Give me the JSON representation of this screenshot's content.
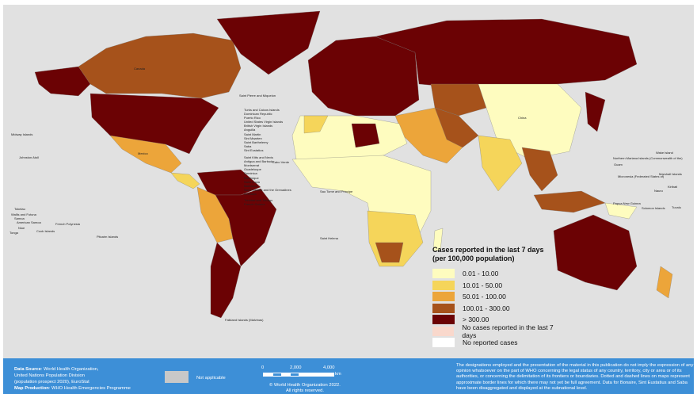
{
  "legend": {
    "title_line1": "Cases reported in the last 7 days",
    "title_line2": "(per 100,000 population)",
    "items": [
      {
        "label": "0.01 - 10.00",
        "color": "#fefcbf"
      },
      {
        "label": "10.01 - 50.00",
        "color": "#f5d55a"
      },
      {
        "label": "50.01 - 100.00",
        "color": "#eca53a"
      },
      {
        "label": "100.01 - 300.00",
        "color": "#a6521b"
      },
      {
        "label": "> 300.00",
        "color": "#6b0204"
      },
      {
        "label": "No cases reported in the last 7 days",
        "color": "#f9d8cc"
      },
      {
        "label": "No reported cases",
        "color": "#ffffff"
      }
    ]
  },
  "map_labels": {
    "canada": "Canada",
    "china": "China",
    "mexico": "Mexico",
    "greenland_spm": "Saint Pierre and Miquelon",
    "caribbean": [
      "Turks and Caicos Islands",
      "Dominican Republic",
      "Puerto Rico",
      "United States Virgin Islands",
      "British Virgin Islands",
      "Anguilla",
      "Saint Martin",
      "Sint Maarten",
      "Saint Barthelemy",
      "Saba",
      "Sint Eustatius",
      "Saint Kitts and Nevis",
      "Antigua and Barbuda",
      "Montserrat",
      "Guadeloupe",
      "Dominica",
      "Martinique",
      "Saint Lucia",
      "Barbados",
      "Saint Vincent and the Grenadines",
      "Grenada",
      "Trinidad and Tobago",
      "French Guiana"
    ],
    "cabo_verde": "Cabo Verde",
    "sao_tome": "Sao Tome and Principe",
    "pacific_west": [
      "Midway Islands",
      "Johnston Atoll",
      "Tokelau",
      "Wallis and Futuna",
      "Samoa",
      "American Samoa",
      "Niue",
      "Tonga",
      "Cook Islands",
      "French Polynesia",
      "Pitcairn Islands"
    ],
    "pacific_east": [
      "Wake Island",
      "Northern Mariana Islands (Commonwealth of the)",
      "Guam",
      "Micronesia (Federated States of)",
      "Marshall Islands",
      "Kiribati",
      "Nauru",
      "Papua New Guinea",
      "Solomon Islands",
      "Tuvalu"
    ],
    "falkland": "Falkland Islands (Malvinas)",
    "saint_helena": "Saint Helena"
  },
  "footer": {
    "data_source_label": "Data Source",
    "data_source_lines": [
      ": World Health Organization,",
      "United Nations Population Division",
      "(population prospect 2020), EuroStat"
    ],
    "map_production_label": "Map Production",
    "map_production": ": WHO Health Emergencies Programme",
    "not_applicable": "Not applicable",
    "not_applicable_color": "#c8c8c8",
    "scale_ticks": [
      "0",
      "2,000",
      "4,000"
    ],
    "scale_unit": "km",
    "copyright_line1": "© World Health Organization  2022.",
    "copyright_line2": "All rights reserved.",
    "disclaimer": "The designations employed and the presentation of the material in this publication do not imply the expression of any opinion whatsoever on the part of WHO concerning the legal status of any country, territory, city or area or of its authorities, or concerning the delimitation of its frontiers or boundaries. Dotted and dashed lines on maps represent approximate border lines for which there may not yet be full agreement. Data for Bonaire, Sint Eustatius and Saba have been disaggregated and displayed at the subnational level."
  }
}
